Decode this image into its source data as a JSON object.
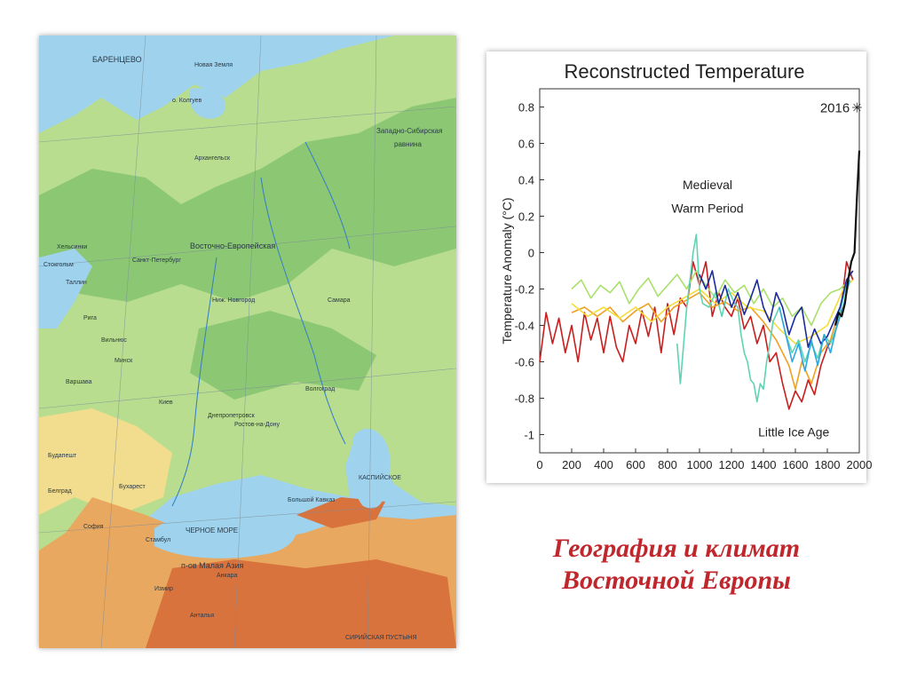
{
  "map": {
    "colors": {
      "sea": "#9fd2ec",
      "lowland": "#b8dd8e",
      "green": "#8cc874",
      "upland": "#f2dd8e",
      "mountain": "#e9a85f",
      "high": "#d9733e"
    },
    "labels": {
      "barents": "БАРЕНЦЕВО",
      "novaya_zemlya": "Новая Земля",
      "kolguev": "о. Колгуев",
      "arkhangelsk": "Архангельск",
      "west_siberian": "Западно-Сибирская",
      "plain": "равнина",
      "east_european": "Восточно-Европейская",
      "st_petersburg": "Санкт-Петербург",
      "helsinki": "Хельсинки",
      "stockholm": "Стокгольм",
      "tallinn": "Таллин",
      "riga": "Рига",
      "vilnius": "Вильнюс",
      "minsk": "Минск",
      "warsaw": "Варшава",
      "n_novgorod": "Ниж. Новгород",
      "samara": "Самара",
      "kiev": "Киев",
      "volgograd": "Волгоград",
      "rostov": "Ростов-на-Дону",
      "dnepropetrovsk": "Днепропетровск",
      "budapest": "Будапешт",
      "belgrade": "Белград",
      "bucharest": "Бухарест",
      "sofia": "София",
      "istanbul": "Стамбул",
      "ankara": "Анкара",
      "izmir": "Измир",
      "antalya": "Анталья",
      "black_sea": "ЧЕРНОЕ МОРЕ",
      "caspian": "КАСПИЙСКОЕ",
      "kavkaz": "Большой Кавказ",
      "asia_minor": "п-ов Малая Азия",
      "syrian": "СИРИЙСКАЯ ПУСТЫНЯ"
    }
  },
  "chart_data": {
    "type": "line",
    "title": "Reconstructed Temperature",
    "ylabel": "Temperature Anomaly (°C)",
    "xlabel": "",
    "xlim": [
      0,
      2000
    ],
    "ylim": [
      -1.1,
      0.9
    ],
    "xticks": [
      "0",
      "200",
      "400",
      "600",
      "800",
      "1000",
      "1200",
      "1400",
      "1600",
      "1800",
      "2000"
    ],
    "yticks": [
      "0.8",
      "0.6",
      "0.4",
      "0.2",
      "0",
      "-0.2",
      "-0.4",
      "-0.6",
      "-0.8",
      "-1"
    ],
    "grid": false,
    "legend": "none",
    "annotations": {
      "medieval_1": "Medieval",
      "medieval_2": "Warm Period",
      "little_ice_age": "Little Ice Age",
      "marker_2016": "2016"
    },
    "series": [
      {
        "color": "#c81e1e",
        "x": [
          0,
          40,
          80,
          120,
          160,
          200,
          240,
          280,
          320,
          360,
          400,
          440,
          480,
          520,
          560,
          600,
          640,
          680,
          720,
          760,
          800,
          840,
          880,
          920,
          960,
          1000,
          1040,
          1080,
          1120,
          1160,
          1200,
          1240,
          1280,
          1320,
          1360,
          1400,
          1440,
          1480,
          1520,
          1560,
          1600,
          1640,
          1680,
          1720,
          1760,
          1800,
          1840,
          1880,
          1920,
          1960
        ],
        "y": [
          -0.6,
          -0.33,
          -0.5,
          -0.36,
          -0.55,
          -0.4,
          -0.6,
          -0.33,
          -0.48,
          -0.36,
          -0.55,
          -0.35,
          -0.52,
          -0.6,
          -0.4,
          -0.5,
          -0.32,
          -0.46,
          -0.3,
          -0.55,
          -0.28,
          -0.45,
          -0.25,
          -0.3,
          -0.05,
          -0.18,
          -0.05,
          -0.35,
          -0.22,
          -0.3,
          -0.35,
          -0.25,
          -0.42,
          -0.35,
          -0.5,
          -0.4,
          -0.6,
          -0.55,
          -0.72,
          -0.86,
          -0.76,
          -0.82,
          -0.7,
          -0.78,
          -0.62,
          -0.52,
          -0.46,
          -0.35,
          -0.05,
          -0.15
        ]
      },
      {
        "color": "#f0a020",
        "x": [
          200,
          280,
          360,
          440,
          520,
          600,
          680,
          760,
          840,
          920,
          1000,
          1080,
          1160,
          1240,
          1320,
          1400,
          1480,
          1560,
          1600,
          1640,
          1700,
          1760,
          1820,
          1880,
          1920,
          1960
        ],
        "y": [
          -0.33,
          -0.3,
          -0.35,
          -0.3,
          -0.38,
          -0.32,
          -0.28,
          -0.38,
          -0.3,
          -0.26,
          -0.22,
          -0.3,
          -0.27,
          -0.32,
          -0.3,
          -0.38,
          -0.48,
          -0.62,
          -0.75,
          -0.6,
          -0.72,
          -0.55,
          -0.48,
          -0.3,
          -0.15,
          -0.1
        ]
      },
      {
        "color": "#f2de3a",
        "x": [
          200,
          300,
          400,
          500,
          600,
          700,
          800,
          900,
          1000,
          1100,
          1200,
          1300,
          1400,
          1500,
          1600,
          1700,
          1800,
          1900,
          1960
        ],
        "y": [
          -0.28,
          -0.35,
          -0.3,
          -0.36,
          -0.3,
          -0.38,
          -0.3,
          -0.25,
          -0.2,
          -0.28,
          -0.22,
          -0.3,
          -0.32,
          -0.42,
          -0.5,
          -0.46,
          -0.4,
          -0.2,
          -0.15
        ]
      },
      {
        "color": "#a8e06a",
        "x": [
          200,
          260,
          320,
          380,
          440,
          500,
          560,
          620,
          680,
          740,
          800,
          860,
          920,
          980,
          1040,
          1100,
          1160,
          1220,
          1280,
          1340,
          1400,
          1460,
          1520,
          1580,
          1640,
          1700,
          1760,
          1820,
          1880,
          1940
        ],
        "y": [
          -0.2,
          -0.15,
          -0.25,
          -0.18,
          -0.22,
          -0.16,
          -0.28,
          -0.2,
          -0.14,
          -0.24,
          -0.18,
          -0.12,
          -0.2,
          -0.1,
          -0.18,
          -0.25,
          -0.15,
          -0.22,
          -0.18,
          -0.28,
          -0.2,
          -0.3,
          -0.25,
          -0.35,
          -0.3,
          -0.4,
          -0.28,
          -0.22,
          -0.2,
          -0.15
        ]
      },
      {
        "color": "#5fd4b4",
        "x": [
          860,
          880,
          920,
          960,
          980,
          1000,
          1020,
          1060,
          1100,
          1140,
          1180,
          1220,
          1240,
          1260,
          1280,
          1300,
          1320,
          1340,
          1360,
          1380,
          1400,
          1420,
          1440,
          1460,
          1500,
          1540,
          1580,
          1620,
          1660,
          1700,
          1740,
          1780,
          1820,
          1860,
          1900,
          1940
        ],
        "y": [
          -0.5,
          -0.72,
          -0.3,
          0,
          0.1,
          -0.2,
          -0.28,
          -0.3,
          -0.22,
          -0.35,
          -0.2,
          -0.28,
          -0.3,
          -0.45,
          -0.55,
          -0.6,
          -0.7,
          -0.72,
          -0.82,
          -0.72,
          -0.75,
          -0.6,
          -0.5,
          -0.38,
          -0.3,
          -0.45,
          -0.55,
          -0.48,
          -0.6,
          -0.5,
          -0.58,
          -0.45,
          -0.5,
          -0.4,
          -0.25,
          -0.1
        ]
      },
      {
        "color": "#1a2aa0",
        "x": [
          1000,
          1040,
          1080,
          1120,
          1160,
          1200,
          1240,
          1280,
          1320,
          1360,
          1400,
          1440,
          1480,
          1520,
          1560,
          1600,
          1640,
          1680,
          1720,
          1760,
          1800,
          1840,
          1880,
          1920,
          1960
        ],
        "y": [
          -0.12,
          -0.2,
          -0.1,
          -0.28,
          -0.18,
          -0.3,
          -0.22,
          -0.34,
          -0.25,
          -0.15,
          -0.3,
          -0.38,
          -0.22,
          -0.3,
          -0.45,
          -0.35,
          -0.3,
          -0.52,
          -0.42,
          -0.5,
          -0.46,
          -0.38,
          -0.3,
          -0.15,
          -0.1
        ]
      },
      {
        "color": "#2ea8e0",
        "x": [
          1500,
          1540,
          1580,
          1620,
          1660,
          1700,
          1740,
          1780,
          1820,
          1860,
          1900,
          1940
        ],
        "y": [
          -0.3,
          -0.45,
          -0.6,
          -0.5,
          -0.65,
          -0.48,
          -0.62,
          -0.45,
          -0.55,
          -0.4,
          -0.3,
          -0.15
        ]
      },
      {
        "color": "#111111",
        "x": [
          1850,
          1870,
          1890,
          1910,
          1930,
          1950,
          1970,
          1985,
          2000
        ],
        "y": [
          -0.4,
          -0.33,
          -0.35,
          -0.28,
          -0.15,
          -0.05,
          0,
          0.3,
          0.56
        ]
      }
    ]
  },
  "caption": {
    "line1": "География и климат",
    "line2": "Восточной Европы"
  }
}
